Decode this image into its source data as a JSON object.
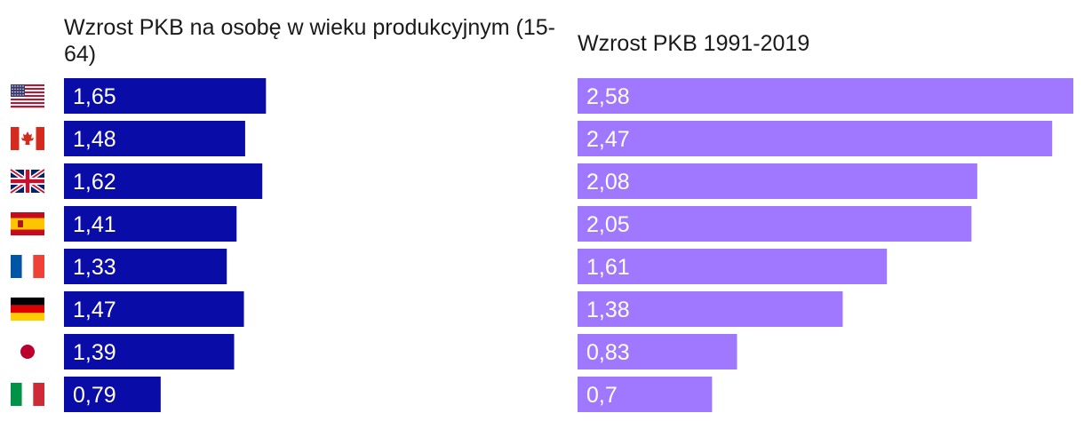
{
  "chart_data": [
    {
      "type": "bar",
      "orientation": "horizontal",
      "title": "Wzrost PKB na osobę w wieku produkcyjnym (15-64)",
      "categories": [
        "USA",
        "Kanada",
        "Wielka Brytania",
        "Hiszpania",
        "Francja",
        "Niemcy",
        "Japonia",
        "Włochy"
      ],
      "values": [
        1.65,
        1.48,
        1.62,
        1.41,
        1.33,
        1.47,
        1.39,
        0.79
      ],
      "labels": [
        "1,65",
        "1,48",
        "1,62",
        "1,41",
        "1,33",
        "1,47",
        "1,39",
        "0,79"
      ],
      "color": "#0a0ca8",
      "xlim": [
        0,
        2.7
      ],
      "grid": false,
      "legend": "none"
    },
    {
      "type": "bar",
      "orientation": "horizontal",
      "title": "Wzrost PKB 1991-2019",
      "categories": [
        "USA",
        "Kanada",
        "Wielka Brytania",
        "Hiszpania",
        "Francja",
        "Niemcy",
        "Japonia",
        "Włochy"
      ],
      "values": [
        2.58,
        2.47,
        2.08,
        2.05,
        1.61,
        1.38,
        0.83,
        0.7
      ],
      "labels": [
        "2,58",
        "2,47",
        "2,08",
        "2,05",
        "1,61",
        "1,38",
        "0,83",
        "0,7"
      ],
      "color": "#a078ff",
      "xlim": [
        0,
        2.58
      ],
      "grid": false,
      "legend": "none"
    }
  ],
  "flags": [
    "us-flag-icon",
    "canada-flag-icon",
    "uk-flag-icon",
    "spain-flag-icon",
    "france-flag-icon",
    "germany-flag-icon",
    "japan-flag-icon",
    "italy-flag-icon"
  ]
}
